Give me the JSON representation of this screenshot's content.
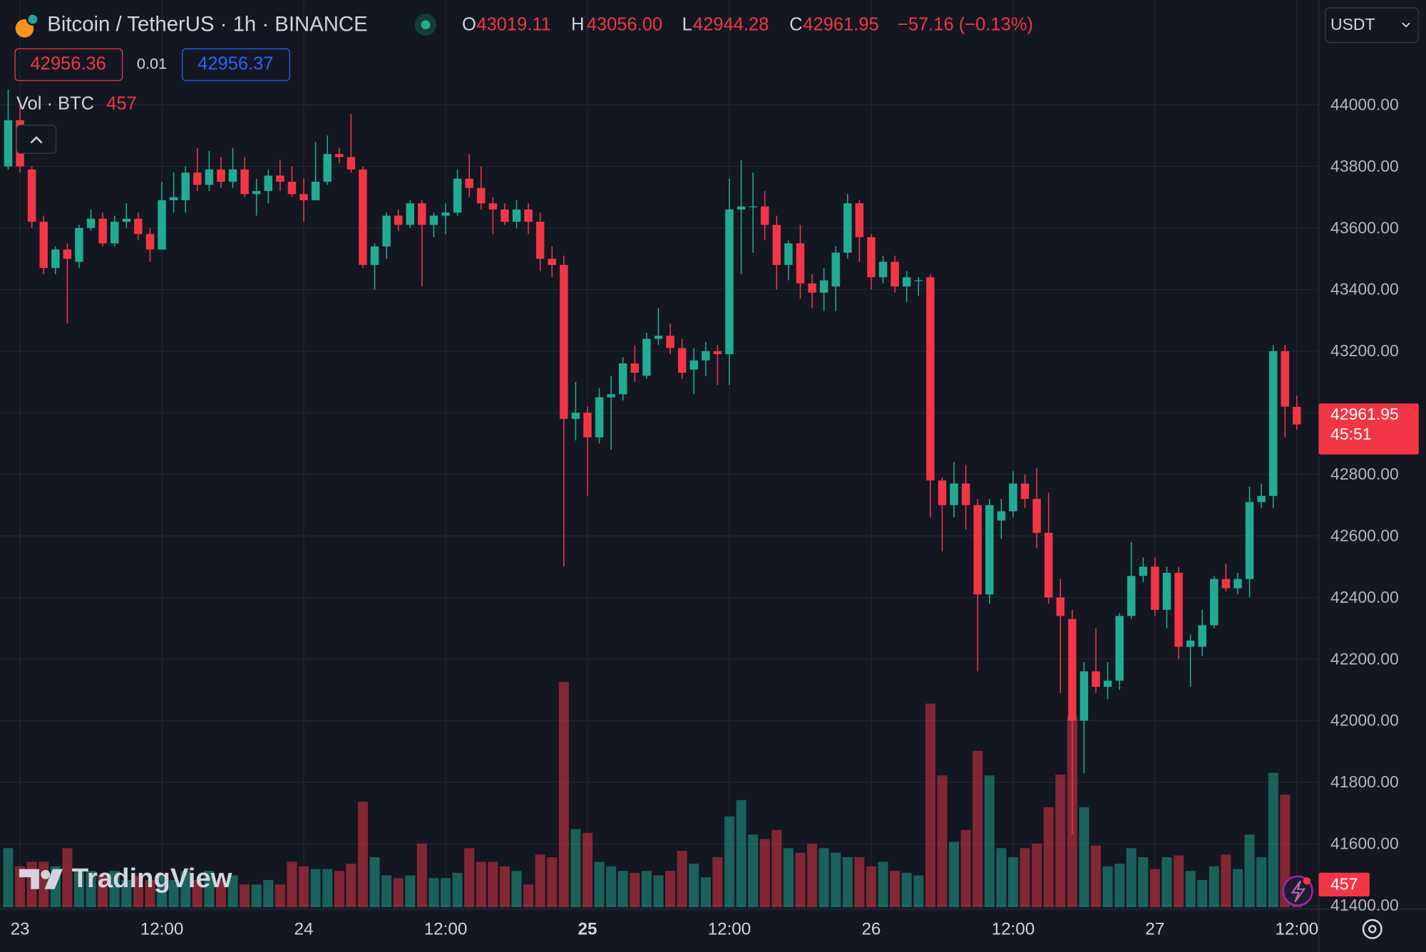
{
  "header": {
    "symbol": "Bitcoin / TetherUS · 1h · BINANCE",
    "ohlc": [
      {
        "key": "O",
        "value": "43019.11"
      },
      {
        "key": "H",
        "value": "43056.00"
      },
      {
        "key": "L",
        "value": "42944.28"
      },
      {
        "key": "C",
        "value": "42961.95"
      }
    ],
    "change": "−57.16 (−0.13%)",
    "bid": 42956.36,
    "spread": 0.01,
    "ask": 42956.37,
    "volume_label": "Vol · BTC",
    "currency": "USDT",
    "countdown": "45:51",
    "logo": "TradingView"
  },
  "chart_data": {
    "type": "candlestick",
    "categories": [
      null,
      "23",
      null,
      null,
      null,
      null,
      null,
      null,
      null,
      null,
      null,
      null,
      null,
      "12:00",
      null,
      null,
      null,
      null,
      null,
      null,
      null,
      null,
      null,
      null,
      null,
      "24",
      null,
      null,
      null,
      null,
      null,
      null,
      null,
      null,
      null,
      null,
      null,
      "12:00",
      null,
      null,
      null,
      null,
      null,
      null,
      null,
      null,
      null,
      null,
      null,
      "25",
      null,
      null,
      null,
      null,
      null,
      null,
      null,
      null,
      null,
      null,
      null,
      "12:00",
      null,
      null,
      null,
      null,
      null,
      null,
      null,
      null,
      null,
      null,
      null,
      "26",
      null,
      null,
      null,
      null,
      null,
      null,
      null,
      null,
      null,
      null,
      null,
      "12:00",
      null,
      null,
      null,
      null,
      null,
      null,
      null,
      null,
      null,
      null,
      null,
      "27",
      null,
      null,
      null,
      null,
      null,
      null,
      null,
      null,
      null,
      null,
      null,
      "12:00"
    ],
    "open": [
      43800,
      43950,
      43790,
      43620,
      43470,
      43530,
      43490,
      43600,
      43630,
      43550,
      43620,
      43630,
      43580,
      43530,
      43690,
      43690,
      43780,
      43740,
      43790,
      43750,
      43790,
      43710,
      43720,
      43770,
      43750,
      43710,
      43690,
      43750,
      43840,
      43830,
      43790,
      43480,
      43540,
      43640,
      43610,
      43680,
      43610,
      43640,
      43650,
      43760,
      43730,
      43680,
      43660,
      43620,
      43660,
      43620,
      43500,
      43480,
      42980,
      43000,
      42920,
      43050,
      43060,
      43160,
      43120,
      43240,
      43250,
      43210,
      43140,
      43170,
      43200,
      43190,
      43660,
      43670,
      43670,
      43610,
      43480,
      43550,
      43420,
      43390,
      43410,
      43520,
      43680,
      43570,
      43440,
      43490,
      43410,
      43430,
      43440,
      42780,
      42700,
      42770,
      42700,
      42410,
      42650,
      42680,
      42770,
      42720,
      42610,
      42400,
      42330,
      42000,
      42160,
      42110,
      42130,
      42340,
      42470,
      42500,
      42360,
      42480,
      42240,
      42240,
      42310,
      42460,
      42430,
      42460,
      42710,
      42730,
      43200,
      43019.11
    ],
    "high": [
      44050,
      44000,
      43800,
      43640,
      43540,
      43550,
      43610,
      43660,
      43650,
      43640,
      43680,
      43650,
      43600,
      43750,
      43780,
      43800,
      43860,
      43850,
      43830,
      43860,
      43830,
      43760,
      43790,
      43820,
      43800,
      43760,
      43880,
      43900,
      43860,
      43970,
      43800,
      43550,
      43650,
      43660,
      43690,
      43690,
      43650,
      43680,
      43790,
      43840,
      43800,
      43700,
      43680,
      43690,
      43680,
      43650,
      43540,
      43510,
      43100,
      43020,
      43080,
      43120,
      43180,
      43220,
      43260,
      43340,
      43290,
      43240,
      43210,
      43230,
      43220,
      43760,
      43820,
      43780,
      43720,
      43640,
      43560,
      43610,
      43450,
      43470,
      43540,
      43710,
      43690,
      43580,
      43510,
      43510,
      43460,
      43440,
      43450,
      42790,
      42840,
      42830,
      42720,
      42720,
      42720,
      42810,
      42800,
      42820,
      42740,
      42460,
      42360,
      42190,
      42300,
      42190,
      42350,
      42580,
      42530,
      42530,
      42500,
      42500,
      42280,
      42360,
      42470,
      42510,
      42480,
      42760,
      42770,
      43220,
      43220,
      43056
    ],
    "low": [
      43790,
      43780,
      43600,
      43450,
      43450,
      43290,
      43470,
      43590,
      43540,
      43540,
      43600,
      43560,
      43490,
      43530,
      43650,
      43650,
      43720,
      43720,
      43730,
      43730,
      43700,
      43640,
      43680,
      43720,
      43700,
      43620,
      43690,
      43740,
      43810,
      43780,
      43470,
      43400,
      43500,
      43590,
      43600,
      43410,
      43570,
      43580,
      43640,
      43700,
      43660,
      43580,
      43610,
      43600,
      43580,
      43460,
      43440,
      42500,
      42910,
      42730,
      42900,
      42880,
      43040,
      43100,
      43110,
      43220,
      43190,
      43110,
      43060,
      43120,
      43090,
      43090,
      43450,
      43520,
      43560,
      43400,
      43430,
      43370,
      43340,
      43330,
      43330,
      43500,
      43490,
      43400,
      43420,
      43390,
      43360,
      43380,
      42660,
      42550,
      42660,
      42620,
      42160,
      42380,
      42590,
      42660,
      42690,
      42560,
      42380,
      42090,
      41630,
      41830,
      42090,
      42070,
      42100,
      42330,
      42450,
      42340,
      42300,
      42200,
      42110,
      42210,
      42300,
      42420,
      42410,
      42400,
      42690,
      42690,
      42920,
      42944.28
    ],
    "close": [
      43950,
      43800,
      43620,
      43470,
      43530,
      43500,
      43600,
      43630,
      43550,
      43620,
      43630,
      43580,
      43530,
      43690,
      43700,
      43780,
      43740,
      43790,
      43750,
      43790,
      43710,
      43720,
      43770,
      43750,
      43710,
      43690,
      43750,
      43840,
      43830,
      43790,
      43480,
      43540,
      43640,
      43610,
      43680,
      43610,
      43640,
      43650,
      43760,
      43730,
      43680,
      43660,
      43620,
      43660,
      43620,
      43500,
      43480,
      42980,
      43000,
      42920,
      43050,
      43060,
      43160,
      43130,
      43240,
      43250,
      43210,
      43130,
      43170,
      43200,
      43190,
      43660,
      43670,
      43670,
      43610,
      43480,
      43550,
      43420,
      43390,
      43430,
      43520,
      43680,
      43570,
      43440,
      43490,
      43410,
      43440,
      43430,
      42780,
      42700,
      42770,
      42700,
      42410,
      42700,
      42680,
      42770,
      42720,
      42610,
      42400,
      42340,
      42000,
      42160,
      42110,
      42130,
      42340,
      42470,
      42500,
      42360,
      42480,
      42240,
      42260,
      42310,
      42460,
      42430,
      42460,
      42710,
      42730,
      43200,
      43020,
      42961.95
    ],
    "volume": [
      1190,
      824,
      915,
      915,
      824,
      1190,
      732,
      732,
      641,
      732,
      549,
      641,
      549,
      641,
      549,
      732,
      549,
      732,
      549,
      641,
      458,
      458,
      549,
      458,
      915,
      824,
      769,
      769,
      732,
      878,
      2123,
      1007,
      641,
      586,
      641,
      1281,
      586,
      586,
      695,
      1190,
      915,
      915,
      824,
      732,
      458,
      1061,
      1007,
      4538,
      1574,
      1501,
      915,
      824,
      732,
      695,
      732,
      641,
      732,
      1135,
      878,
      604,
      1007,
      1830,
      2159,
      1464,
      1373,
      1556,
      1190,
      1098,
      1281,
      1190,
      1098,
      1007,
      1007,
      824,
      915,
      732,
      695,
      641,
      4099,
      2654,
      1318,
      1556,
      3148,
      2654,
      1190,
      1007,
      1190,
      1281,
      2013,
      2672,
      3843,
      2013,
      1244,
      824,
      878,
      1190,
      1007,
      769,
      1007,
      1043,
      732,
      549,
      824,
      1061,
      769,
      1464,
      1007,
      2708,
      2269,
      457
    ],
    "up_color": "#22ab94",
    "down_color": "#f23645",
    "ylim": [
      41394,
      44198
    ],
    "yticks": [
      {
        "value": 41400,
        "label": "41400.00"
      },
      {
        "value": 41600,
        "label": "41600.00"
      },
      {
        "value": 41800,
        "label": "41800.00"
      },
      {
        "value": 42000,
        "label": "42000.00"
      },
      {
        "value": 42200,
        "label": "42200.00"
      },
      {
        "value": 42400,
        "label": "42400.00"
      },
      {
        "value": 42600,
        "label": "42600.00"
      },
      {
        "value": 42800,
        "label": "42800.00"
      },
      {
        "value": 43000,
        "label": "43000.00"
      },
      {
        "value": 43200,
        "label": "43200.00"
      },
      {
        "value": 43400,
        "label": "43400.00"
      },
      {
        "value": 43600,
        "label": "43600.00"
      },
      {
        "value": 43800,
        "label": "43800.00"
      },
      {
        "value": 44000,
        "label": "44000.00"
      }
    ],
    "grid": true
  }
}
